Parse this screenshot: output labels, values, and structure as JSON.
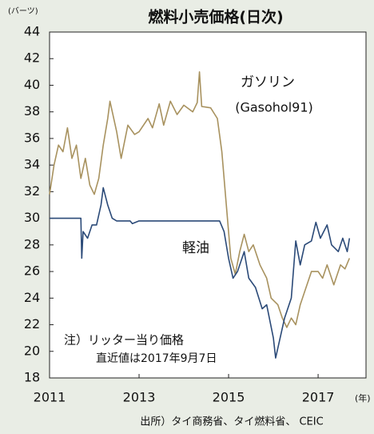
{
  "chart_data": {
    "type": "line",
    "title": "燃料小売価格(日次)",
    "y_unit": "(バーツ)",
    "x_unit": "(年)",
    "notes": [
      "注）リッター当り価格",
      "直近値は2017年9月7日"
    ],
    "source": "出所）タイ商務省、タイ燃料省、 CEIC",
    "xlim": [
      2011,
      2018.07
    ],
    "xticks": [
      2011,
      2013,
      2015,
      2017
    ],
    "ylim": [
      18,
      44
    ],
    "yticks": [
      18,
      20,
      22,
      24,
      26,
      28,
      30,
      32,
      34,
      36,
      38,
      40,
      42,
      44
    ],
    "series": [
      {
        "name": "ガソリン",
        "subname": "(Gasohol91)",
        "color": "#a8925f",
        "x": [
          2011.0,
          2011.1,
          2011.2,
          2011.3,
          2011.4,
          2011.5,
          2011.6,
          2011.7,
          2011.8,
          2011.9,
          2012.0,
          2012.1,
          2012.2,
          2012.3,
          2012.35,
          2012.5,
          2012.6,
          2012.75,
          2012.9,
          2013.0,
          2013.2,
          2013.3,
          2013.45,
          2013.55,
          2013.7,
          2013.85,
          2014.0,
          2014.2,
          2014.3,
          2014.35,
          2014.4,
          2014.6,
          2014.75,
          2014.85,
          2014.95,
          2015.05,
          2015.15,
          2015.25,
          2015.35,
          2015.45,
          2015.55,
          2015.7,
          2015.85,
          2015.95,
          2016.1,
          2016.2,
          2016.3,
          2016.4,
          2016.5,
          2016.6,
          2016.7,
          2016.85,
          2017.0,
          2017.1,
          2017.2,
          2017.35,
          2017.5,
          2017.6,
          2017.7
        ],
        "values": [
          31.8,
          34,
          35.5,
          35,
          36.8,
          34.5,
          35.5,
          33,
          34.5,
          32.5,
          31.8,
          33,
          35.5,
          37.5,
          38.8,
          36.5,
          34.5,
          37,
          36.3,
          36.5,
          37.5,
          36.8,
          38.6,
          37,
          38.8,
          37.8,
          38.5,
          38,
          38.7,
          41,
          38.4,
          38.3,
          37.5,
          35,
          31,
          27,
          25.8,
          27.5,
          28.8,
          27.5,
          28,
          26.5,
          25.5,
          24,
          23.5,
          22.5,
          21.8,
          22.5,
          22,
          23.5,
          24.5,
          26,
          26,
          25.5,
          26.5,
          25,
          26.5,
          26.2,
          27
        ]
      },
      {
        "name": "軽油",
        "color": "#2b4a78",
        "x": [
          2011.0,
          2011.7,
          2011.72,
          2011.75,
          2011.85,
          2011.95,
          2012.05,
          2012.15,
          2012.2,
          2012.3,
          2012.4,
          2012.5,
          2012.8,
          2012.85,
          2013.0,
          2014.8,
          2014.9,
          2015.0,
          2015.1,
          2015.2,
          2015.35,
          2015.45,
          2015.6,
          2015.75,
          2015.85,
          2016.0,
          2016.05,
          2016.15,
          2016.25,
          2016.4,
          2016.5,
          2016.6,
          2016.7,
          2016.85,
          2016.95,
          2017.05,
          2017.2,
          2017.3,
          2017.45,
          2017.55,
          2017.65,
          2017.7
        ],
        "values": [
          30,
          30,
          27,
          29,
          28.5,
          29.5,
          29.5,
          31,
          32.3,
          31,
          30,
          29.8,
          29.8,
          29.6,
          29.8,
          29.8,
          29,
          27,
          25.5,
          26,
          27.5,
          25.5,
          24.8,
          23.2,
          23.5,
          21,
          19.5,
          21,
          22.5,
          24,
          28.3,
          26.5,
          28,
          28.3,
          29.7,
          28.5,
          29.5,
          28,
          27.5,
          28.5,
          27.5,
          28.5
        ]
      }
    ]
  }
}
